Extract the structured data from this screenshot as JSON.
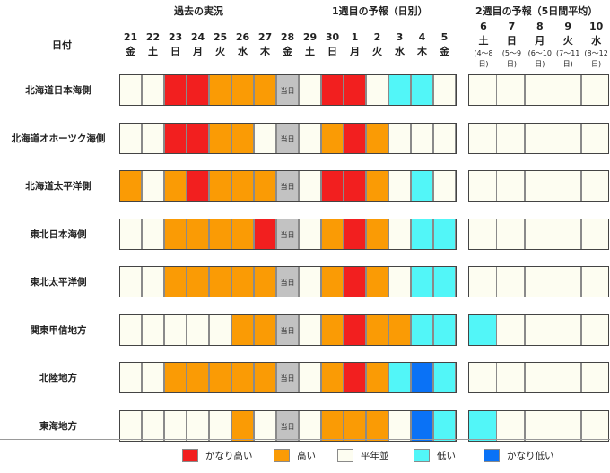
{
  "colors": {
    "very_high": "#f21f1f",
    "high": "#fa9b05",
    "normal": "#fdfdf1",
    "low": "#52f6f8",
    "very_low": "#0a72f6",
    "today": "#c2c2c2"
  },
  "sections": {
    "past": "過去の実況",
    "week1": "1週目の予報（日別）",
    "week2": "2週目の予報（5日間平均）"
  },
  "row_header_label": "日付",
  "today_label": "当日",
  "days": [
    {
      "num": "21",
      "wd": "金"
    },
    {
      "num": "22",
      "wd": "土"
    },
    {
      "num": "23",
      "wd": "日"
    },
    {
      "num": "24",
      "wd": "月"
    },
    {
      "num": "25",
      "wd": "火"
    },
    {
      "num": "26",
      "wd": "水"
    },
    {
      "num": "27",
      "wd": "木"
    },
    {
      "num": "28",
      "wd": "金"
    },
    {
      "num": "29",
      "wd": "土"
    },
    {
      "num": "30",
      "wd": "日"
    },
    {
      "num": "1",
      "wd": "月"
    },
    {
      "num": "2",
      "wd": "火"
    },
    {
      "num": "3",
      "wd": "水"
    },
    {
      "num": "4",
      "wd": "木"
    },
    {
      "num": "5",
      "wd": "金"
    }
  ],
  "week2_days": [
    {
      "num": "6",
      "wd": "土",
      "range": "(4～8日)"
    },
    {
      "num": "7",
      "wd": "日",
      "range": "(5～9日)"
    },
    {
      "num": "8",
      "wd": "月",
      "range": "(6～10日)"
    },
    {
      "num": "9",
      "wd": "火",
      "range": "(7～11日)"
    },
    {
      "num": "10",
      "wd": "水",
      "range": "(8～12日)"
    }
  ],
  "regions": [
    {
      "name": "北海道日本海側",
      "cells": [
        "n",
        "n",
        "vh",
        "vh",
        "h",
        "h",
        "h",
        "t",
        "n",
        "vh",
        "vh",
        "n",
        "l",
        "l",
        "n"
      ],
      "week2": [
        "n",
        "n",
        "n",
        "n",
        "n"
      ]
    },
    {
      "name": "北海道オホーツク海側",
      "cells": [
        "n",
        "n",
        "vh",
        "vh",
        "h",
        "h",
        "n",
        "t",
        "n",
        "h",
        "vh",
        "h",
        "n",
        "n",
        "n"
      ],
      "week2": [
        "n",
        "n",
        "n",
        "n",
        "n"
      ]
    },
    {
      "name": "北海道太平洋側",
      "cells": [
        "h",
        "n",
        "h",
        "vh",
        "h",
        "h",
        "h",
        "t",
        "n",
        "vh",
        "vh",
        "h",
        "n",
        "l",
        "n"
      ],
      "week2": [
        "n",
        "n",
        "n",
        "n",
        "n"
      ]
    },
    {
      "name": "東北日本海側",
      "cells": [
        "n",
        "n",
        "h",
        "h",
        "h",
        "h",
        "vh",
        "t",
        "n",
        "h",
        "vh",
        "h",
        "n",
        "l",
        "l"
      ],
      "week2": [
        "n",
        "n",
        "n",
        "n",
        "n"
      ]
    },
    {
      "name": "東北太平洋側",
      "cells": [
        "n",
        "n",
        "h",
        "h",
        "h",
        "h",
        "h",
        "t",
        "n",
        "h",
        "vh",
        "h",
        "n",
        "l",
        "l"
      ],
      "week2": [
        "n",
        "n",
        "n",
        "n",
        "n"
      ]
    },
    {
      "name": "関東甲信地方",
      "cells": [
        "n",
        "n",
        "n",
        "n",
        "n",
        "h",
        "h",
        "t",
        "n",
        "h",
        "vh",
        "h",
        "h",
        "l",
        "l"
      ],
      "week2": [
        "l",
        "n",
        "n",
        "n",
        "n"
      ]
    },
    {
      "name": "北陸地方",
      "cells": [
        "n",
        "n",
        "h",
        "h",
        "h",
        "h",
        "h",
        "t",
        "n",
        "h",
        "vh",
        "h",
        "l",
        "vl",
        "l"
      ],
      "week2": [
        "n",
        "n",
        "n",
        "n",
        "n"
      ]
    },
    {
      "name": "東海地方",
      "cells": [
        "n",
        "n",
        "n",
        "n",
        "n",
        "h",
        "n",
        "t",
        "n",
        "h",
        "h",
        "h",
        "n",
        "vl",
        "l"
      ],
      "week2": [
        "l",
        "n",
        "n",
        "n",
        "n"
      ]
    }
  ],
  "legend": [
    {
      "key": "vh",
      "label": "かなり高い"
    },
    {
      "key": "h",
      "label": "高い"
    },
    {
      "key": "n",
      "label": "平年並"
    },
    {
      "key": "l",
      "label": "低い"
    },
    {
      "key": "vl",
      "label": "かなり低い"
    }
  ]
}
